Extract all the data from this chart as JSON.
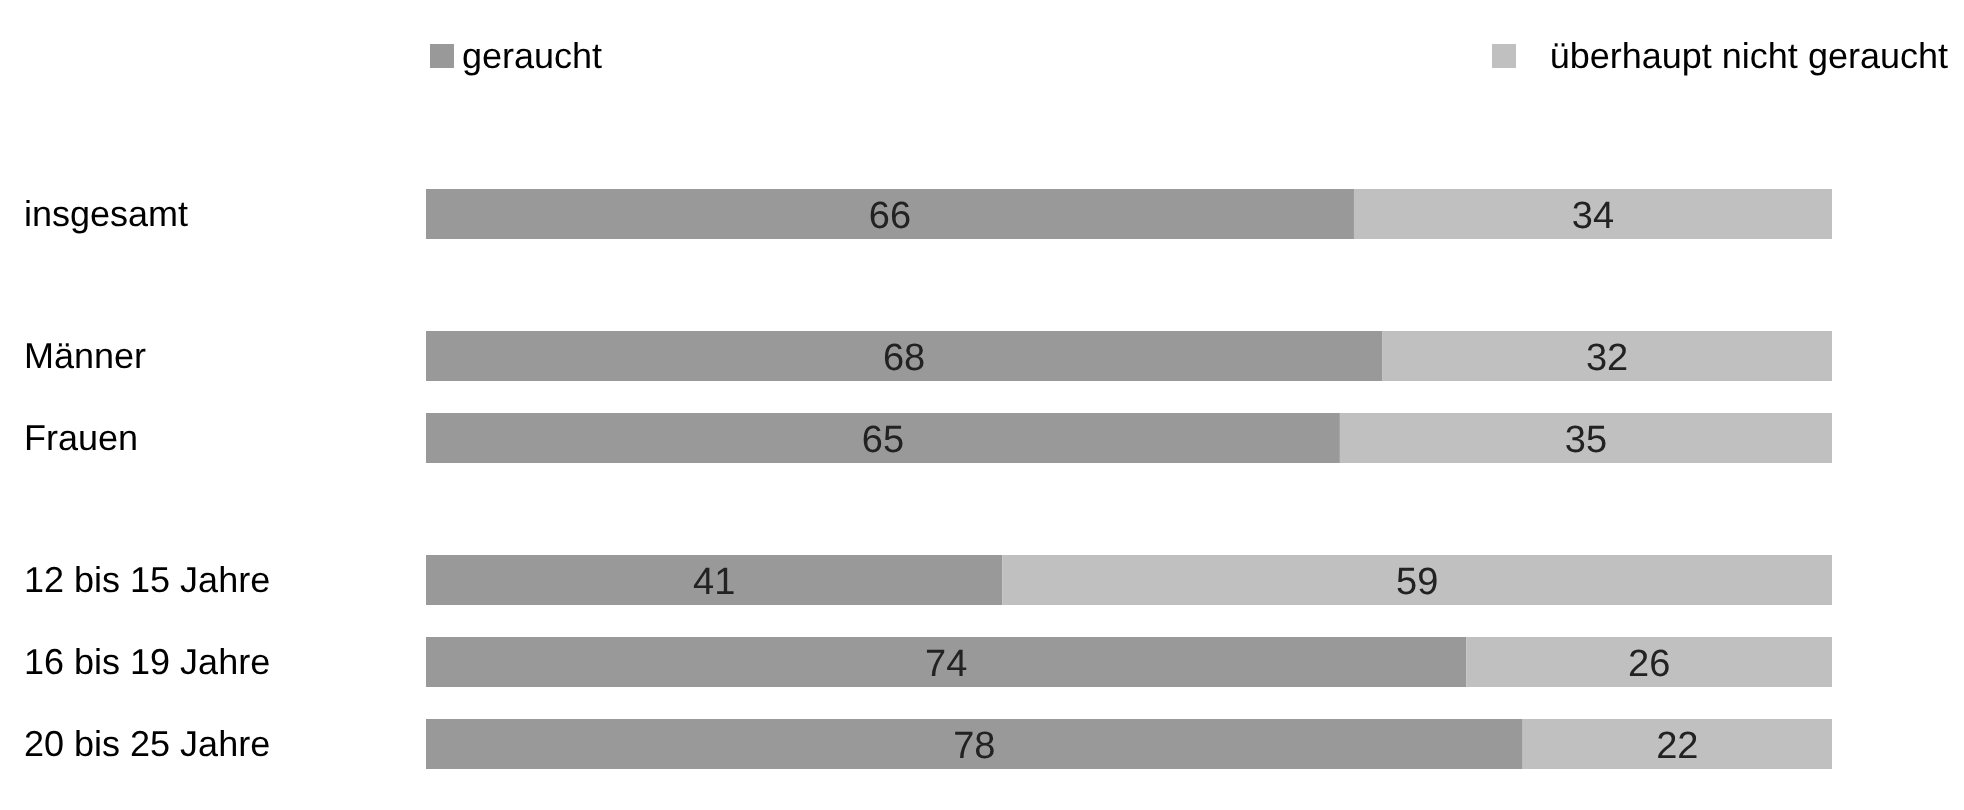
{
  "chart_data": {
    "type": "bar",
    "orientation": "horizontal",
    "stacked": true,
    "legend": "top",
    "data_labels": true,
    "xlim": [
      0,
      100
    ],
    "categories": [
      "insgesamt",
      null,
      "Männer",
      "Frauen",
      null,
      "12 bis 15 Jahre",
      "16 bis 19 Jahre",
      "20 bis 25 Jahre"
    ],
    "series": [
      {
        "name": "geraucht",
        "color": "#999999",
        "values": [
          66,
          null,
          68,
          65,
          null,
          41,
          74,
          78
        ]
      },
      {
        "name": "überhaupt nicht geraucht",
        "color": "#c0c0c0",
        "values": [
          34,
          null,
          32,
          35,
          null,
          59,
          26,
          22
        ]
      }
    ]
  }
}
